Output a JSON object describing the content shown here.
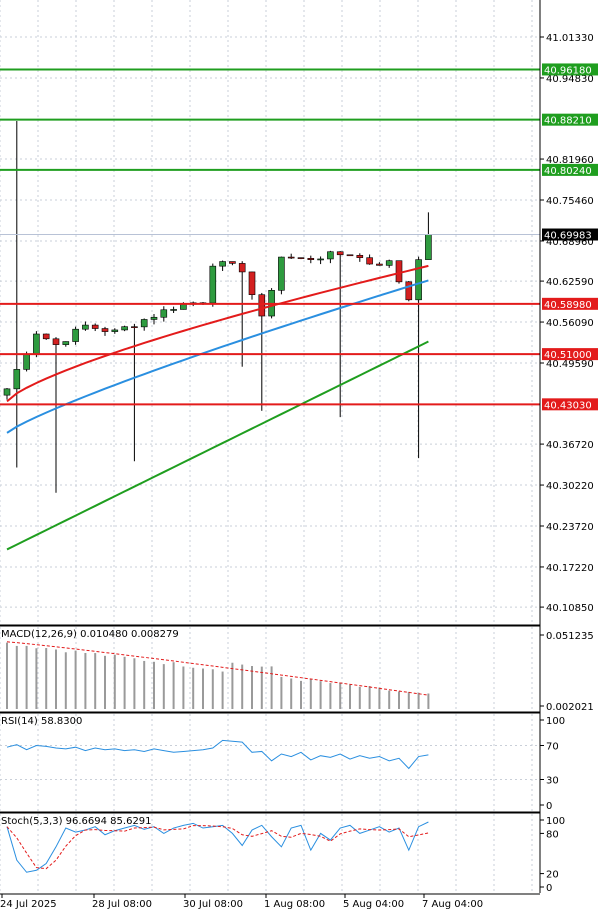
{
  "chart_data": [
    {
      "type": "candlestick",
      "panel": "price",
      "y_ticks": [
        "41.01330",
        "40.94830",
        "40.81960",
        "40.75460",
        "40.68960",
        "40.62590",
        "40.56090",
        "40.49590",
        "40.36720",
        "40.30220",
        "40.23720",
        "40.17220",
        "40.10850"
      ],
      "current_price": {
        "value": "40.69983",
        "color": "#000000"
      },
      "levels": [
        {
          "value": "40.96180",
          "color": "#1f9e1f"
        },
        {
          "value": "40.88210",
          "color": "#1f9e1f"
        },
        {
          "value": "40.80240",
          "color": "#1f9e1f"
        },
        {
          "value": "40.58980",
          "color": "#e31b1b"
        },
        {
          "value": "40.51000",
          "color": "#e31b1b"
        },
        {
          "value": "40.43030",
          "color": "#e31b1b"
        }
      ],
      "x_labels": [
        "24 Jul 2025",
        "28 Jul 08:00",
        "30 Jul 08:00",
        "1 Aug 08:00",
        "5 Aug 04:00",
        "7 Aug 04:00"
      ],
      "moving_averages": [
        {
          "color": "#e31b1b"
        },
        {
          "color": "#2a8fe0"
        },
        {
          "color": "#1f9e1f"
        }
      ],
      "candle_colors": {
        "up": "#2e9b3f",
        "down": "#d32020"
      }
    },
    {
      "type": "bar",
      "panel": "macd",
      "title": "MACD(12,26,9) 0.010480 0.008279",
      "y_ticks": [
        "0.051235",
        "0.002021"
      ]
    },
    {
      "type": "line",
      "panel": "rsi",
      "title": "RSI(14) 58.8300",
      "y_ticks": [
        "100",
        "70",
        "30",
        "0"
      ]
    },
    {
      "type": "line",
      "panel": "stoch",
      "title": "Stoch(5,3,3) 96.6694 85.6291",
      "y_ticks": [
        "100",
        "80",
        "20",
        "0"
      ]
    }
  ]
}
